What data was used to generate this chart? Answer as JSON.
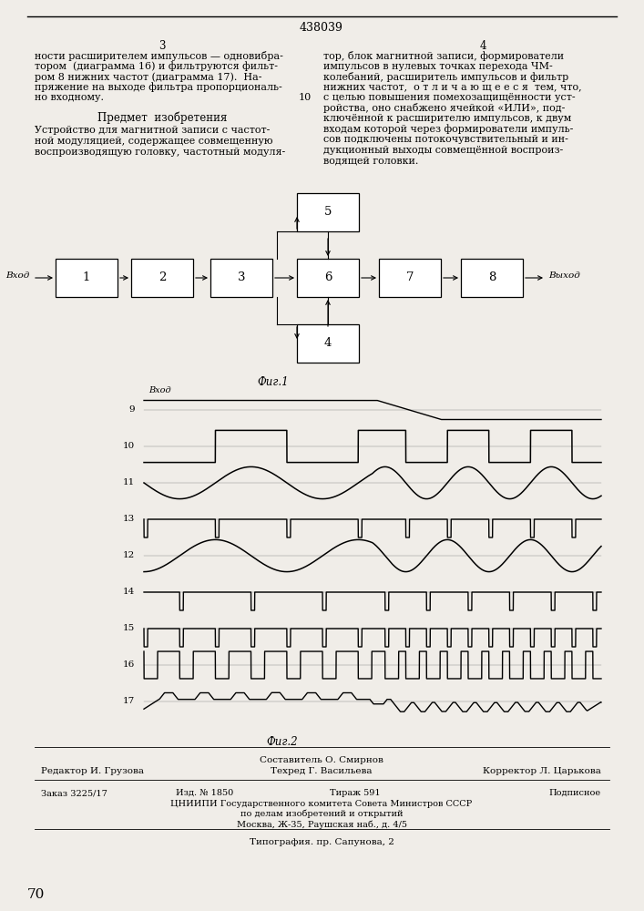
{
  "page_number": "438039",
  "col_left_num": "3",
  "col_right_num": "4",
  "col_left_text": [
    "ности расширителем импульсов — одновибра-",
    "тором  (диаграмма 16) и фильтруются фильт-",
    "ром 8 нижних частот (диаграмма 17).  На-",
    "пряжение на выходе фильтра пропорциональ-",
    "но входному."
  ],
  "subject_heading": "Предмет  изобретения",
  "subject_text": [
    "Устройство для магнитной записи с частот-",
    "ной модуляцией, содержащее совмещенную",
    "воспроизводящую головку, частотный модуля-"
  ],
  "line_number_right": "10",
  "col_right_text": [
    "тор, блок магнитной записи, формирователи",
    "импульсов в нулевых точках перехода ЧМ-",
    "колебаний, расширитель импульсов и фильтр",
    "нижних частот,  о т л и ч а ю щ е е с я  тем, что,",
    "с целью повышения помехозащищённости уст-",
    "ройства, оно снабжено ячейкой «ИЛИ», под-",
    "ключённой к расширителю импульсов, к двум",
    "входам которой через формирователи импуль-",
    "сов подключены потокочувствительный и ин-",
    "дукционный выходы совмещённой воспроиз-",
    "водящей головки."
  ],
  "fig1_label": "Фиг.1",
  "fig2_label": "Фиг.2",
  "input_label": "Вход",
  "output_label": "Выход",
  "diagram_labels": [
    "9",
    "10",
    "11",
    "13",
    "12",
    "14",
    "15",
    "16",
    "17"
  ],
  "diagram9_label": "Вход",
  "footer_composer": "Составитель О. Смирнов",
  "footer_editor": "Редактор И. Грузова",
  "footer_tech": "Техред Г. Васильева",
  "footer_corrector": "Корректор Л. Царькова",
  "footer_order": "Заказ 3225/17",
  "footer_izd": "Изд. № 1850",
  "footer_tirazh": "Тираж 591",
  "footer_podpis": "Подписное",
  "footer_tsniipii": "ЦНИИПИ Государственного комитета Совета Министров СССР",
  "footer_po": "по делам изобретений и открытий",
  "footer_moscow": "Москва, Ж-35, Раушская наб., д. 4/5",
  "footer_tipografia": "Типография. пр. Сапунова, 2",
  "page_num_bottom": "70",
  "bg_color": "#f0ede8"
}
